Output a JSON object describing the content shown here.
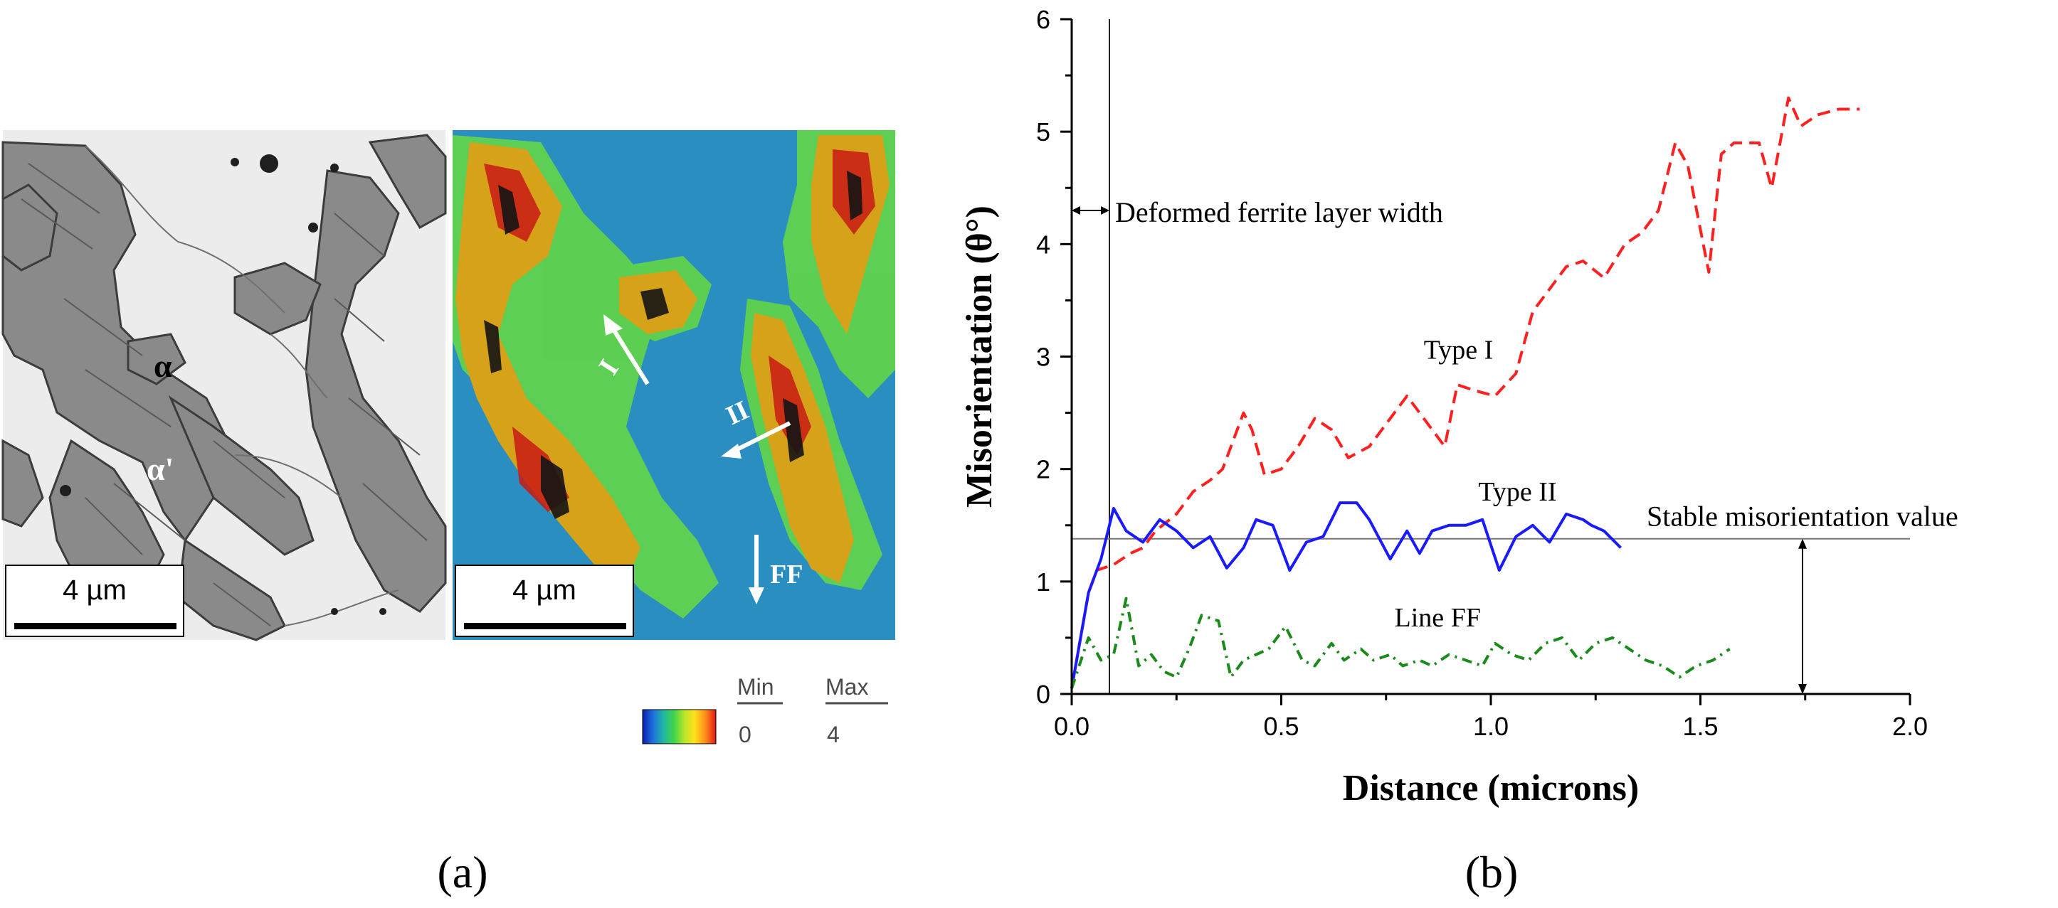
{
  "panel_a": {
    "caption": "(a)",
    "sem": {
      "scale_bar": "4 µm",
      "labels": [
        "α",
        "α'"
      ]
    },
    "kam_map": {
      "scale_bar": "4 µm",
      "arrow_labels": [
        "I",
        "II",
        "FF"
      ]
    },
    "colorbar": {
      "min_title": "Min",
      "max_title": "Max",
      "min_value": "0",
      "max_value": "4",
      "colors": [
        "#0a1fa8",
        "#1e6fe0",
        "#1fb8a0",
        "#3fd44a",
        "#b8e62a",
        "#ffe01a",
        "#ff8a1a",
        "#e01818"
      ]
    }
  },
  "panel_b": {
    "caption": "(b)",
    "chart_data": {
      "type": "line",
      "xlabel": "Distance (microns)",
      "ylabel": "Misorientation (θ°)",
      "xlim": [
        0,
        2.0
      ],
      "ylim": [
        0,
        6
      ],
      "xticks": [
        "0.0",
        "0.5",
        "1.0",
        "1.5",
        "2.0"
      ],
      "yticks": [
        "0",
        "1",
        "2",
        "3",
        "4",
        "5",
        "6"
      ],
      "series": [
        {
          "name": "Type I",
          "color": "#ff2020",
          "style": "dashed",
          "x": [
            0.0,
            0.04,
            0.06,
            0.1,
            0.14,
            0.17,
            0.2,
            0.25,
            0.29,
            0.33,
            0.36,
            0.41,
            0.43,
            0.46,
            0.5,
            0.54,
            0.58,
            0.62,
            0.66,
            0.71,
            0.76,
            0.8,
            0.85,
            0.89,
            0.92,
            0.96,
            1.01,
            1.06,
            1.1,
            1.14,
            1.18,
            1.22,
            1.27,
            1.32,
            1.36,
            1.4,
            1.44,
            1.47,
            1.52,
            1.55,
            1.58,
            1.64,
            1.67,
            1.71,
            1.74,
            1.78,
            1.83,
            1.88
          ],
          "y": [
            0.05,
            0.9,
            1.1,
            1.15,
            1.25,
            1.3,
            1.45,
            1.6,
            1.8,
            1.9,
            2.0,
            2.5,
            2.35,
            1.95,
            2.0,
            2.2,
            2.45,
            2.35,
            2.1,
            2.2,
            2.45,
            2.65,
            2.4,
            2.2,
            2.75,
            2.7,
            2.65,
            2.85,
            3.4,
            3.6,
            3.8,
            3.85,
            3.7,
            4.0,
            4.1,
            4.3,
            4.9,
            4.7,
            3.75,
            4.8,
            4.9,
            4.9,
            4.5,
            5.3,
            5.05,
            5.15,
            5.2,
            5.2
          ]
        },
        {
          "name": "Type II",
          "color": "#1a1aff",
          "style": "solid",
          "x": [
            0.0,
            0.04,
            0.07,
            0.1,
            0.13,
            0.17,
            0.21,
            0.25,
            0.29,
            0.33,
            0.37,
            0.41,
            0.44,
            0.48,
            0.52,
            0.56,
            0.6,
            0.64,
            0.68,
            0.71,
            0.76,
            0.8,
            0.83,
            0.86,
            0.9,
            0.94,
            0.98,
            1.02,
            1.06,
            1.1,
            1.14,
            1.18,
            1.22,
            1.24,
            1.27,
            1.31
          ],
          "y": [
            0.05,
            0.9,
            1.2,
            1.65,
            1.45,
            1.35,
            1.55,
            1.45,
            1.3,
            1.4,
            1.12,
            1.3,
            1.55,
            1.5,
            1.1,
            1.35,
            1.4,
            1.7,
            1.7,
            1.55,
            1.2,
            1.45,
            1.25,
            1.45,
            1.5,
            1.5,
            1.55,
            1.1,
            1.4,
            1.5,
            1.35,
            1.6,
            1.55,
            1.5,
            1.45,
            1.3
          ]
        },
        {
          "name": "Line FF",
          "color": "#1a8a1a",
          "style": "dashdot",
          "x": [
            0.0,
            0.04,
            0.07,
            0.1,
            0.13,
            0.16,
            0.19,
            0.22,
            0.25,
            0.28,
            0.31,
            0.35,
            0.38,
            0.41,
            0.44,
            0.47,
            0.51,
            0.55,
            0.58,
            0.62,
            0.65,
            0.69,
            0.72,
            0.76,
            0.79,
            0.83,
            0.86,
            0.9,
            0.94,
            0.98,
            1.01,
            1.05,
            1.09,
            1.13,
            1.17,
            1.21,
            1.25,
            1.29,
            1.33,
            1.37,
            1.41,
            1.45,
            1.49,
            1.53,
            1.57
          ],
          "y": [
            0.05,
            0.5,
            0.3,
            0.35,
            0.85,
            0.25,
            0.35,
            0.2,
            0.15,
            0.4,
            0.7,
            0.65,
            0.15,
            0.3,
            0.35,
            0.4,
            0.6,
            0.3,
            0.25,
            0.45,
            0.3,
            0.4,
            0.3,
            0.35,
            0.25,
            0.3,
            0.25,
            0.35,
            0.3,
            0.25,
            0.45,
            0.35,
            0.3,
            0.45,
            0.5,
            0.3,
            0.45,
            0.5,
            0.4,
            0.3,
            0.25,
            0.15,
            0.25,
            0.3,
            0.4
          ]
        }
      ],
      "annotations": {
        "layer_width_label": "Deformed ferrite layer width",
        "layer_width_x": 0.09,
        "stable_label": "Stable misorientation value",
        "stable_y": 1.38,
        "series_labels": [
          {
            "text": "Type I",
            "x": 0.84,
            "y": 2.98
          },
          {
            "text": "Type II",
            "x": 0.97,
            "y": 1.72
          },
          {
            "text": "Line FF",
            "x": 0.77,
            "y": 0.6
          }
        ]
      }
    }
  }
}
